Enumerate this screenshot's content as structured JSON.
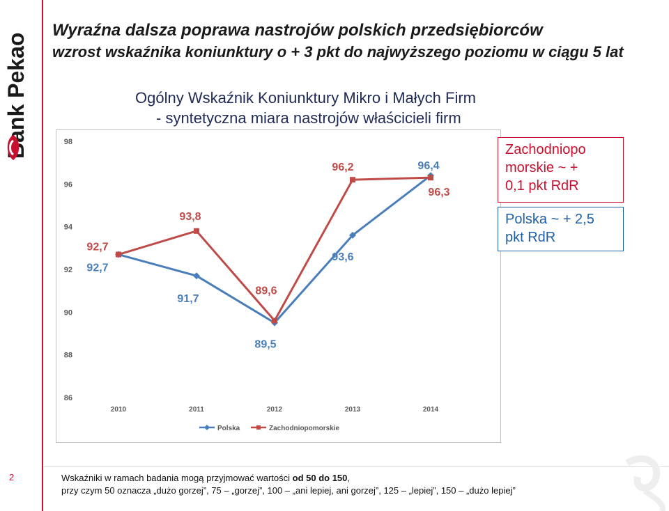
{
  "brand": {
    "name": "Bank Pekao",
    "accent_color": "#c8102e"
  },
  "header": {
    "title": "Wyraźna dalsza poprawa nastrojów polskich przedsiębiorców",
    "subtitle": "wzrost wskaźnika koniunktury o + 3 pkt do najwyższego poziomu w ciągu 5 lat",
    "chart_title_line1": "Ogólny Wskaźnik Koniunktury Mikro i Małych Firm",
    "chart_title_line2": "- syntetyczna miara nastrojów właścicieli firm"
  },
  "callouts": {
    "zachodniopomorskie": {
      "line1": "Zachodniopo",
      "line2": "morskie ~ +",
      "line3": "0,1 pkt RdR"
    },
    "polska": {
      "line1": "Polska ~ + 2,5",
      "line2": "pkt RdR"
    }
  },
  "footer": {
    "page_number": "2",
    "note_prefix": "Wskaźniki w ramach badania mogą przyjmować wartości",
    "note_bold": "od 50 do 150",
    "note_suffix": ",",
    "note_line2": "przy czym  50 oznacza „dużo gorzej”, 75 – „gorzej”, 100 – „ani lepiej, ani gorzej”, 125 – „lepiej”, 150 – „dużo lepiej”"
  },
  "chart_data": {
    "type": "line",
    "x": [
      "2010",
      "2011",
      "2012",
      "2013",
      "2014"
    ],
    "ylim": [
      86,
      98
    ],
    "yticks": [
      "86",
      "88",
      "90",
      "92",
      "94",
      "96",
      "98"
    ],
    "grid": false,
    "legend_position": "bottom",
    "series": [
      {
        "name": "Polska",
        "color": "#4a7ebb",
        "marker": "diamond",
        "values": [
          92.7,
          91.7,
          89.5,
          93.6,
          96.4
        ],
        "labels": [
          "92,7",
          "91,7",
          "89,5",
          "93,6",
          "96,4"
        ]
      },
      {
        "name": "Zachodniopomorskie",
        "color": "#be4b48",
        "marker": "square",
        "values": [
          92.7,
          93.8,
          89.6,
          96.2,
          96.3
        ],
        "labels": [
          "92,7",
          "93,8",
          "89,6",
          "96,2",
          "96,3"
        ]
      }
    ]
  }
}
